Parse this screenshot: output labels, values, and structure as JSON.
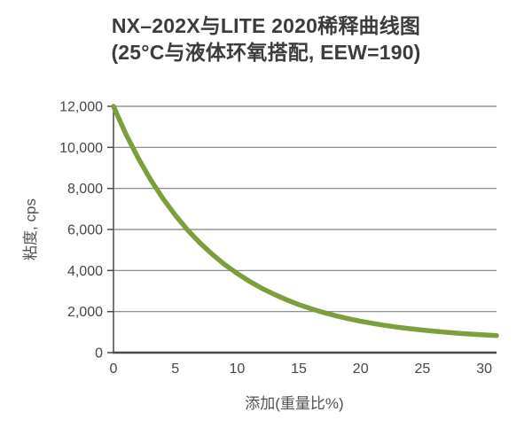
{
  "chart": {
    "title": "NX–202X与LITE 2020稀释曲线图",
    "subtitle": "(25°C与液体环氧搭配, EEW=190)"
  },
  "colors": {
    "curve": "#7d9e3d",
    "grid": "#7f7f7f",
    "axis": "#4b4b4b",
    "title_text": "#3c3c3c",
    "tick_text": "#474747",
    "background": "#ffffff"
  },
  "chart_data": {
    "type": "line",
    "title": "NX–202X与LITE 2020稀释曲线图",
    "subtitle": "(25°C与液体环氧搭配, EEW=190)",
    "xlabel": "添加(重量比%)",
    "ylabel": "粘度, cps",
    "x_range": [
      0,
      31
    ],
    "y_range": [
      0,
      12000
    ],
    "grid": "horizontal-only",
    "legend": "none",
    "x_ticks": {
      "values": [
        0,
        5,
        10,
        15,
        20,
        25,
        30
      ],
      "labels": [
        "0",
        "5",
        "10",
        "15",
        "20",
        "25",
        "30"
      ]
    },
    "y_ticks": {
      "values": [
        0,
        2000,
        4000,
        6000,
        8000,
        10000,
        12000
      ],
      "labels": [
        "0",
        "2,000",
        "4,000",
        "6,000",
        "8,000",
        "10,000",
        "12,000"
      ]
    },
    "series": [
      {
        "color": "#7d9e3d",
        "points": [
          [
            0,
            12000
          ],
          [
            1,
            10650
          ],
          [
            2,
            9475
          ],
          [
            3,
            8430
          ],
          [
            4,
            7510
          ],
          [
            5,
            6695
          ],
          [
            6,
            5975
          ],
          [
            7,
            5345
          ],
          [
            8,
            4785
          ],
          [
            9,
            4290
          ],
          [
            10,
            3860
          ],
          [
            11,
            3475
          ],
          [
            12,
            3135
          ],
          [
            13,
            2840
          ],
          [
            14,
            2575
          ],
          [
            15,
            2340
          ],
          [
            16,
            2135
          ],
          [
            17,
            1955
          ],
          [
            18,
            1795
          ],
          [
            19,
            1655
          ],
          [
            20,
            1530
          ],
          [
            21,
            1420
          ],
          [
            22,
            1325
          ],
          [
            23,
            1240
          ],
          [
            24,
            1165
          ],
          [
            25,
            1100
          ],
          [
            26,
            1040
          ],
          [
            27,
            990
          ],
          [
            28,
            940
          ],
          [
            29,
            900
          ],
          [
            30,
            865
          ],
          [
            31,
            835
          ]
        ]
      }
    ]
  }
}
